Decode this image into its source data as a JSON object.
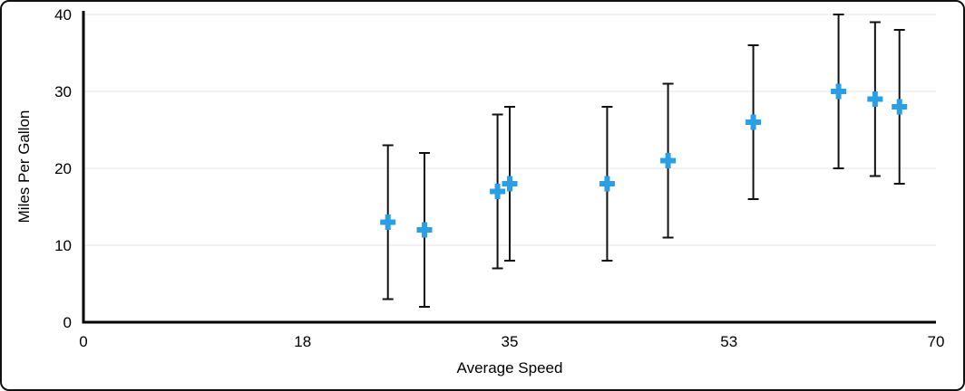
{
  "chart_data": {
    "type": "scatter",
    "title": "",
    "xlabel": "Average Speed",
    "ylabel": "Miles Per Gallon",
    "xlim": [
      0,
      70
    ],
    "ylim": [
      0,
      40
    ],
    "x_ticks": [
      0,
      18,
      35,
      53,
      70
    ],
    "y_ticks": [
      0,
      10,
      20,
      30,
      40
    ],
    "grid": "horizontal-only",
    "grid_color": "#E4E4E4",
    "axis_color": "#000000",
    "legend": "none",
    "marker": {
      "shape": "plus",
      "color": "#2B9FE3",
      "size": 17,
      "stroke": 6
    },
    "error_bar": {
      "type": "fixed",
      "value": 10,
      "color": "#111111",
      "cap_width": 12,
      "stroke": 2
    },
    "points": [
      {
        "x": 25,
        "y": 13,
        "error": 10
      },
      {
        "x": 28,
        "y": 12,
        "error": 10
      },
      {
        "x": 34,
        "y": 17,
        "error": 10
      },
      {
        "x": 35,
        "y": 18,
        "error": 10
      },
      {
        "x": 43,
        "y": 18,
        "error": 10
      },
      {
        "x": 48,
        "y": 21,
        "error": 10
      },
      {
        "x": 55,
        "y": 26,
        "error": 10
      },
      {
        "x": 62,
        "y": 30,
        "error": 10
      },
      {
        "x": 65,
        "y": 29,
        "error": 10
      },
      {
        "x": 67,
        "y": 28,
        "error": 10
      }
    ]
  }
}
